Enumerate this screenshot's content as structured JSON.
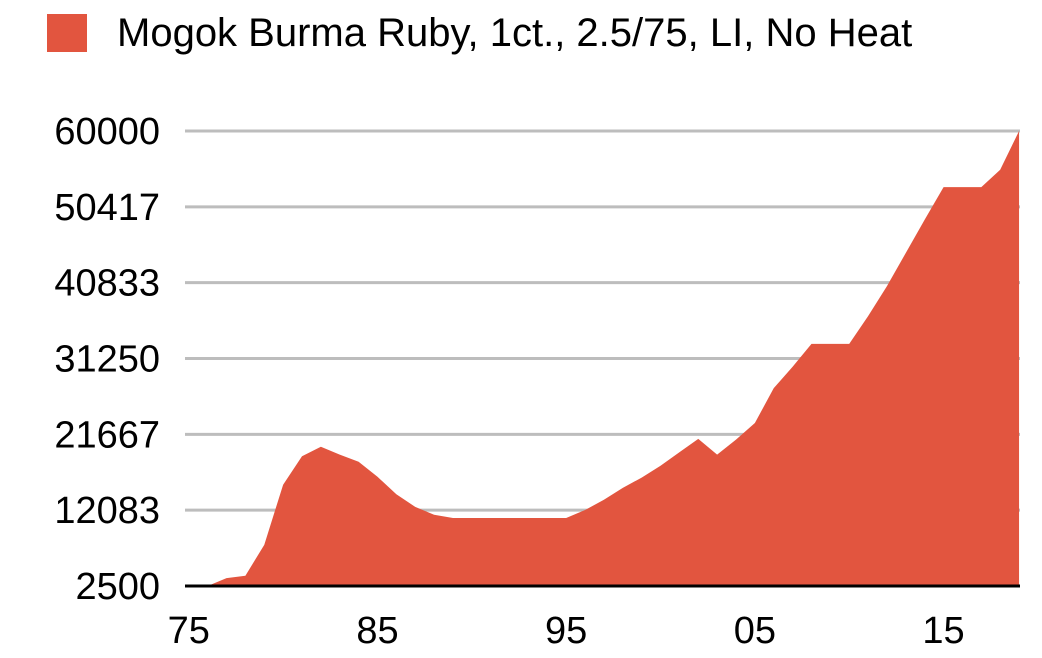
{
  "chart_data": {
    "type": "area",
    "series": [
      {
        "name": "Mogok Burma Ruby, 1ct., 2.5/75, LI, No Heat",
        "color": "#e2553f",
        "values": [
          2500,
          3500,
          3800,
          7700,
          15300,
          18900,
          20100,
          19100,
          18200,
          16300,
          14100,
          12500,
          11500,
          11100,
          11100,
          11100,
          11100,
          11100,
          11100,
          11100,
          12100,
          13400,
          14900,
          16200,
          17700,
          19400,
          21100,
          19100,
          21000,
          23100,
          27500,
          30200,
          33100,
          33100,
          33100,
          36600,
          40400,
          44600,
          48800,
          52900,
          52900,
          52900,
          55100,
          60000
        ]
      }
    ],
    "x": [
      1976,
      1977,
      1978,
      1979,
      1980,
      1981,
      1982,
      1983,
      1984,
      1985,
      1986,
      1987,
      1988,
      1989,
      1990,
      1991,
      1992,
      1993,
      1994,
      1995,
      1996,
      1997,
      1998,
      1999,
      2000,
      2001,
      2002,
      2003,
      2004,
      2005,
      2006,
      2007,
      2008,
      2009,
      2010,
      2011,
      2012,
      2013,
      2014,
      2015,
      2016,
      2017,
      2018,
      2019
    ],
    "xlim": [
      1974.8,
      2019.05
    ],
    "xticks": [
      {
        "value": 1975,
        "label": "75"
      },
      {
        "value": 1985,
        "label": "85"
      },
      {
        "value": 1995,
        "label": "95"
      },
      {
        "value": 2005,
        "label": "05"
      },
      {
        "value": 2015,
        "label": "15"
      }
    ],
    "ylim": [
      2500,
      60000
    ],
    "yticks": [
      2500,
      12083,
      21667,
      31250,
      40833,
      50417,
      60000
    ],
    "grid": true
  }
}
